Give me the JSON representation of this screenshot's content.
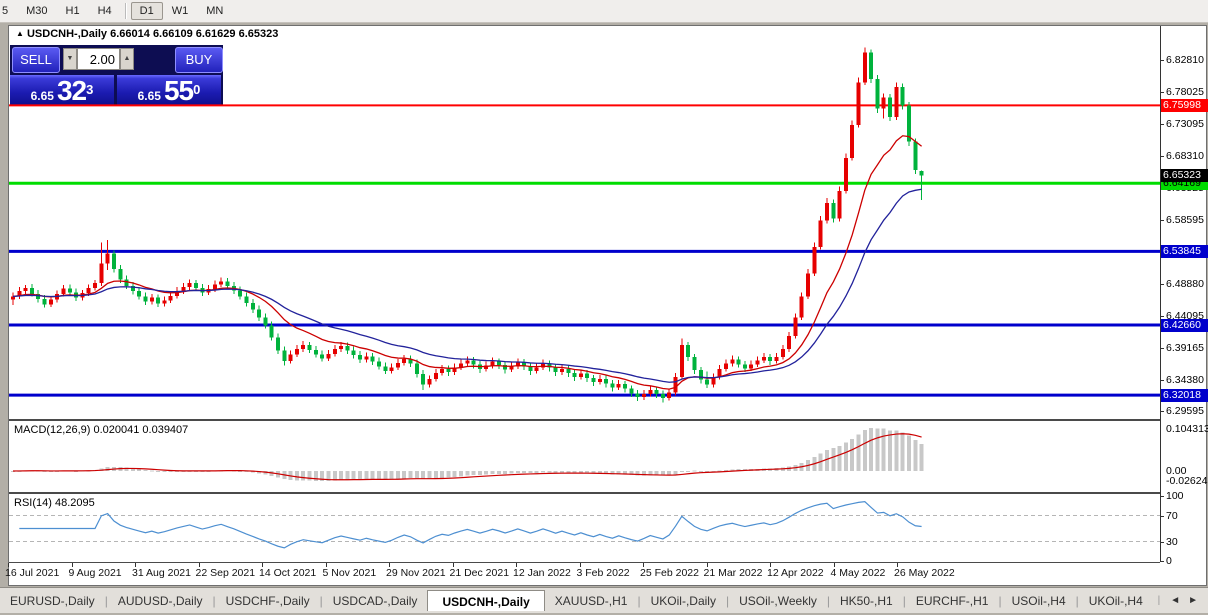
{
  "toolbar": {
    "timeframes": [
      "5",
      "M30",
      "H1",
      "H4",
      "D1",
      "W1",
      "MN"
    ],
    "active": "D1",
    "separator_after": "H4"
  },
  "chart_header": {
    "marker": "▲",
    "title": "USDCNH-,Daily",
    "ohlc": "6.66014 6.66109 6.61629 6.65323"
  },
  "trade_panel": {
    "sell_label": "SELL",
    "buy_label": "BUY",
    "volume": "2.00",
    "spinner_down_glyph": "▼",
    "spinner_up_glyph": "▲",
    "sell_price": {
      "small": "6.65",
      "big": "32",
      "sup": "3"
    },
    "buy_price": {
      "small": "6.65",
      "big": "55",
      "sup": "0"
    }
  },
  "price_axis": {
    "ticks": [
      6.8281,
      6.78025,
      6.73095,
      6.6831,
      6.63525,
      6.58595,
      6.53845,
      6.4888,
      6.44095,
      6.39165,
      6.3438,
      6.29595
    ],
    "current_price": {
      "text": "6.65323",
      "value": 6.65323,
      "bg": "#000000",
      "fg": "#ffffff"
    }
  },
  "macd_panel": {
    "label": "MACD(12,26,9) 0.020041 0.039407",
    "axis_top": "0.104313",
    "axis_zero": "0.00",
    "axis_bottom": "-0.026249"
  },
  "rsi_panel": {
    "label": "RSI(14) 48.2095",
    "axis": [
      {
        "text": "100",
        "value": 100
      },
      {
        "text": "70",
        "value": 70
      },
      {
        "text": "30",
        "value": 30
      },
      {
        "text": "0",
        "value": 0
      }
    ],
    "dashed_levels": [
      70,
      30
    ]
  },
  "date_axis": [
    "16 Jul 2021",
    "9 Aug 2021",
    "31 Aug 2021",
    "22 Sep 2021",
    "14 Oct 2021",
    "5 Nov 2021",
    "29 Nov 2021",
    "21 Dec 2021",
    "12 Jan 2022",
    "3 Feb 2022",
    "25 Feb 2022",
    "21 Mar 2022",
    "12 Apr 2022",
    "4 May 2022",
    "26 May 2022"
  ],
  "tabs": {
    "items": [
      "EURUSD-,Daily",
      "AUDUSD-,Daily",
      "USDCHF-,Daily",
      "USDCAD-,Daily",
      "USDCNH-,Daily",
      "XAUUSD-,H1",
      "UKOil-,Daily",
      "USOil-,Weekly",
      "HK50-,H1",
      "EURCHF-,H1",
      "USOil-,H4",
      "UKOil-,H4"
    ],
    "active": "USDCNH-,Daily",
    "scroll_left_glyph": "◄",
    "scroll_right_glyph": "►"
  },
  "colors": {
    "bull": "#e60000",
    "bear": "#00b23c",
    "ma_fast": "#cc0000",
    "ma_slow": "#22229b",
    "macd_hist": "#c8c8c8",
    "macd_signal": "#cc0000",
    "rsi_line": "#4d8fd1",
    "hline_red": "#ff0000",
    "hline_green": "#00dd00",
    "hline_blue": "#0000cc"
  },
  "chart_data": {
    "type": "candlestick",
    "symbol": "USDCNH-",
    "period": "Daily",
    "price_range": [
      6.2855,
      6.8804
    ],
    "hlines": [
      {
        "price": 6.75998,
        "label": "6.75998",
        "color": "red"
      },
      {
        "price": 6.64169,
        "label": "6.64169",
        "color": "green"
      },
      {
        "price": 6.53845,
        "label": "6.53845",
        "color": "blue"
      },
      {
        "price": 6.4266,
        "label": "6.42660",
        "color": "blue"
      },
      {
        "price": 6.32018,
        "label": "6.32018",
        "color": "blue"
      }
    ],
    "overlays": [
      {
        "type": "ema",
        "period": 13,
        "color_key": "ma_fast"
      },
      {
        "type": "ema",
        "period": 26,
        "color_key": "ma_slow"
      }
    ],
    "indicators": [
      {
        "type": "MACD",
        "params": [
          12,
          26,
          9
        ],
        "current": [
          0.020041,
          0.039407
        ]
      },
      {
        "type": "RSI",
        "params": [
          14
        ],
        "current": 48.2095
      }
    ],
    "candles": [
      [
        6.465,
        6.476,
        6.457,
        6.47
      ],
      [
        6.47,
        6.484,
        6.466,
        6.478
      ],
      [
        6.478,
        6.487,
        6.474,
        6.483
      ],
      [
        6.483,
        6.489,
        6.47,
        6.474
      ],
      [
        6.474,
        6.48,
        6.461,
        6.466
      ],
      [
        6.466,
        6.472,
        6.453,
        6.458
      ],
      [
        6.458,
        6.47,
        6.454,
        6.465
      ],
      [
        6.465,
        6.479,
        6.461,
        6.474
      ],
      [
        6.474,
        6.487,
        6.47,
        6.482
      ],
      [
        6.482,
        6.488,
        6.471,
        6.476
      ],
      [
        6.476,
        6.482,
        6.463,
        6.468
      ],
      [
        6.468,
        6.48,
        6.464,
        6.475
      ],
      [
        6.475,
        6.488,
        6.471,
        6.483
      ],
      [
        6.483,
        6.495,
        6.479,
        6.49
      ],
      [
        6.49,
        6.552,
        6.486,
        6.52
      ],
      [
        6.52,
        6.556,
        6.51,
        6.535
      ],
      [
        6.535,
        6.54,
        6.506,
        6.512
      ],
      [
        6.512,
        6.518,
        6.49,
        6.496
      ],
      [
        6.496,
        6.502,
        6.481,
        6.486
      ],
      [
        6.486,
        6.492,
        6.473,
        6.478
      ],
      [
        6.478,
        6.484,
        6.465,
        6.47
      ],
      [
        6.47,
        6.476,
        6.457,
        6.462
      ],
      [
        6.462,
        6.474,
        6.458,
        6.468
      ],
      [
        6.468,
        6.473,
        6.454,
        6.459
      ],
      [
        6.459,
        6.47,
        6.455,
        6.464
      ],
      [
        6.464,
        6.477,
        6.46,
        6.471
      ],
      [
        6.471,
        6.484,
        6.467,
        6.478
      ],
      [
        6.478,
        6.49,
        6.474,
        6.484
      ],
      [
        6.484,
        6.496,
        6.48,
        6.49
      ],
      [
        6.49,
        6.495,
        6.478,
        6.483
      ],
      [
        6.483,
        6.489,
        6.471,
        6.476
      ],
      [
        6.476,
        6.487,
        6.472,
        6.481
      ],
      [
        6.481,
        6.494,
        6.477,
        6.488
      ],
      [
        6.488,
        6.499,
        6.484,
        6.493
      ],
      [
        6.493,
        6.498,
        6.481,
        6.486
      ],
      [
        6.486,
        6.492,
        6.474,
        6.479
      ],
      [
        6.479,
        6.485,
        6.465,
        6.47
      ],
      [
        6.47,
        6.476,
        6.455,
        6.46
      ],
      [
        6.46,
        6.466,
        6.445,
        6.45
      ],
      [
        6.45,
        6.456,
        6.433,
        6.438
      ],
      [
        6.438,
        6.444,
        6.421,
        6.426
      ],
      [
        6.426,
        6.432,
        6.403,
        6.408
      ],
      [
        6.408,
        6.414,
        6.383,
        6.388
      ],
      [
        6.388,
        6.394,
        6.365,
        6.372
      ],
      [
        6.372,
        6.388,
        6.368,
        6.382
      ],
      [
        6.382,
        6.396,
        6.378,
        6.39
      ],
      [
        6.39,
        6.402,
        6.386,
        6.396
      ],
      [
        6.396,
        6.401,
        6.384,
        6.389
      ],
      [
        6.389,
        6.395,
        6.377,
        6.382
      ],
      [
        6.382,
        6.388,
        6.371,
        6.376
      ],
      [
        6.376,
        6.389,
        6.372,
        6.383
      ],
      [
        6.383,
        6.396,
        6.379,
        6.39
      ],
      [
        6.39,
        6.401,
        6.386,
        6.395
      ],
      [
        6.395,
        6.4,
        6.383,
        6.388
      ],
      [
        6.388,
        6.394,
        6.376,
        6.381
      ],
      [
        6.381,
        6.387,
        6.369,
        6.374
      ],
      [
        6.374,
        6.385,
        6.37,
        6.379
      ],
      [
        6.379,
        6.384,
        6.366,
        6.371
      ],
      [
        6.371,
        6.377,
        6.359,
        6.364
      ],
      [
        6.364,
        6.37,
        6.352,
        6.357
      ],
      [
        6.357,
        6.368,
        6.353,
        6.362
      ],
      [
        6.362,
        6.375,
        6.358,
        6.369
      ],
      [
        6.369,
        6.381,
        6.365,
        6.375
      ],
      [
        6.375,
        6.38,
        6.363,
        6.368
      ],
      [
        6.368,
        6.374,
        6.347,
        6.352
      ],
      [
        6.352,
        6.358,
        6.328,
        6.336
      ],
      [
        6.336,
        6.35,
        6.332,
        6.345
      ],
      [
        6.345,
        6.36,
        6.341,
        6.354
      ],
      [
        6.354,
        6.366,
        6.35,
        6.36
      ],
      [
        6.36,
        6.365,
        6.349,
        6.355
      ],
      [
        6.355,
        6.368,
        6.351,
        6.362
      ],
      [
        6.362,
        6.374,
        6.358,
        6.368
      ],
      [
        6.368,
        6.379,
        6.364,
        6.373
      ],
      [
        6.373,
        6.378,
        6.361,
        6.367
      ],
      [
        6.367,
        6.372,
        6.354,
        6.36
      ],
      [
        6.36,
        6.371,
        6.356,
        6.365
      ],
      [
        6.365,
        6.377,
        6.361,
        6.371
      ],
      [
        6.371,
        6.376,
        6.36,
        6.366
      ],
      [
        6.366,
        6.371,
        6.353,
        6.359
      ],
      [
        6.359,
        6.37,
        6.355,
        6.364
      ],
      [
        6.364,
        6.376,
        6.36,
        6.37
      ],
      [
        6.37,
        6.375,
        6.358,
        6.364
      ],
      [
        6.364,
        6.369,
        6.351,
        6.357
      ],
      [
        6.357,
        6.368,
        6.353,
        6.362
      ],
      [
        6.362,
        6.374,
        6.358,
        6.368
      ],
      [
        6.368,
        6.373,
        6.356,
        6.362
      ],
      [
        6.362,
        6.367,
        6.349,
        6.355
      ],
      [
        6.355,
        6.366,
        6.351,
        6.36
      ],
      [
        6.36,
        6.365,
        6.348,
        6.354
      ],
      [
        6.354,
        6.359,
        6.342,
        6.348
      ],
      [
        6.348,
        6.359,
        6.344,
        6.353
      ],
      [
        6.353,
        6.358,
        6.34,
        6.346
      ],
      [
        6.346,
        6.351,
        6.334,
        6.34
      ],
      [
        6.34,
        6.351,
        6.336,
        6.345
      ],
      [
        6.345,
        6.35,
        6.332,
        6.338
      ],
      [
        6.338,
        6.343,
        6.326,
        6.332
      ],
      [
        6.332,
        6.343,
        6.328,
        6.337
      ],
      [
        6.337,
        6.342,
        6.324,
        6.33
      ],
      [
        6.33,
        6.335,
        6.317,
        6.323
      ],
      [
        6.323,
        6.328,
        6.311,
        6.317
      ],
      [
        6.317,
        6.328,
        6.313,
        6.322
      ],
      [
        6.322,
        6.334,
        6.318,
        6.328
      ],
      [
        6.328,
        6.333,
        6.316,
        6.322
      ],
      [
        6.322,
        6.327,
        6.309,
        6.316
      ],
      [
        6.316,
        6.33,
        6.312,
        6.324
      ],
      [
        6.324,
        6.354,
        6.32,
        6.348
      ],
      [
        6.348,
        6.406,
        6.344,
        6.396
      ],
      [
        6.396,
        6.401,
        6.372,
        6.378
      ],
      [
        6.378,
        6.383,
        6.352,
        6.358
      ],
      [
        6.358,
        6.363,
        6.338,
        6.344
      ],
      [
        6.344,
        6.356,
        6.331,
        6.336
      ],
      [
        6.336,
        6.353,
        6.332,
        6.348
      ],
      [
        6.348,
        6.366,
        6.344,
        6.36
      ],
      [
        6.36,
        6.374,
        6.356,
        6.368
      ],
      [
        6.368,
        6.38,
        6.364,
        6.374
      ],
      [
        6.374,
        6.379,
        6.362,
        6.367
      ],
      [
        6.367,
        6.372,
        6.355,
        6.361
      ],
      [
        6.361,
        6.373,
        6.357,
        6.367
      ],
      [
        6.367,
        6.379,
        6.363,
        6.373
      ],
      [
        6.373,
        6.384,
        6.369,
        6.378
      ],
      [
        6.378,
        6.383,
        6.366,
        6.372
      ],
      [
        6.372,
        6.384,
        6.368,
        6.378
      ],
      [
        6.378,
        6.396,
        6.374,
        6.39
      ],
      [
        6.39,
        6.416,
        6.386,
        6.41
      ],
      [
        6.41,
        6.444,
        6.406,
        6.438
      ],
      [
        6.438,
        6.476,
        6.434,
        6.47
      ],
      [
        6.47,
        6.512,
        6.466,
        6.505
      ],
      [
        6.505,
        6.552,
        6.501,
        6.545
      ],
      [
        6.545,
        6.592,
        6.541,
        6.585
      ],
      [
        6.585,
        6.619,
        6.581,
        6.612
      ],
      [
        6.612,
        6.617,
        6.582,
        6.588
      ],
      [
        6.588,
        6.637,
        6.584,
        6.63
      ],
      [
        6.63,
        6.687,
        6.626,
        6.68
      ],
      [
        6.68,
        6.737,
        6.676,
        6.73
      ],
      [
        6.73,
        6.802,
        6.726,
        6.795
      ],
      [
        6.795,
        6.848,
        6.791,
        6.84
      ],
      [
        6.84,
        6.845,
        6.794,
        6.8
      ],
      [
        6.8,
        6.806,
        6.748,
        6.755
      ],
      [
        6.755,
        6.778,
        6.74,
        6.772
      ],
      [
        6.772,
        6.777,
        6.736,
        6.742
      ],
      [
        6.742,
        6.795,
        6.738,
        6.788
      ],
      [
        6.788,
        6.793,
        6.754,
        6.76
      ],
      [
        6.76,
        6.765,
        6.698,
        6.705
      ],
      [
        6.705,
        6.71,
        6.656,
        6.662
      ],
      [
        6.6601,
        6.6611,
        6.6163,
        6.6532
      ]
    ]
  }
}
